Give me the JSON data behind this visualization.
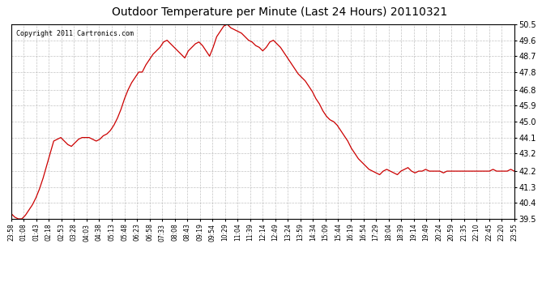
{
  "title": "Outdoor Temperature per Minute (Last 24 Hours) 20110321",
  "copyright": "Copyright 2011 Cartronics.com",
  "line_color": "#cc0000",
  "bg_color": "#ffffff",
  "plot_bg_color": "#ffffff",
  "grid_color": "#aaaaaa",
  "grid_style": "--",
  "ylim": [
    39.5,
    50.5
  ],
  "yticks": [
    39.5,
    40.4,
    41.3,
    42.2,
    43.2,
    44.1,
    45.0,
    45.9,
    46.8,
    47.8,
    48.7,
    49.6,
    50.5
  ],
  "x_labels": [
    "23:58",
    "01:08",
    "01:43",
    "02:18",
    "02:53",
    "03:28",
    "04:03",
    "04:38",
    "05:13",
    "05:48",
    "06:23",
    "06:58",
    "07:33",
    "08:08",
    "08:43",
    "09:19",
    "09:54",
    "10:29",
    "11:04",
    "11:39",
    "12:14",
    "12:49",
    "13:24",
    "13:59",
    "14:34",
    "15:09",
    "15:44",
    "16:19",
    "16:54",
    "17:29",
    "18:04",
    "18:39",
    "19:14",
    "19:49",
    "20:24",
    "20:59",
    "21:35",
    "22:10",
    "22:45",
    "23:20",
    "23:55"
  ],
  "temperature_profile": [
    39.8,
    39.6,
    39.5,
    39.5,
    39.7,
    40.0,
    40.3,
    40.7,
    41.2,
    41.8,
    42.5,
    43.2,
    43.9,
    44.0,
    44.1,
    43.9,
    43.7,
    43.6,
    43.8,
    44.0,
    44.1,
    44.1,
    44.1,
    44.0,
    43.9,
    44.0,
    44.2,
    44.3,
    44.5,
    44.8,
    45.2,
    45.7,
    46.3,
    46.8,
    47.2,
    47.5,
    47.8,
    47.8,
    48.2,
    48.5,
    48.8,
    49.0,
    49.2,
    49.5,
    49.6,
    49.4,
    49.2,
    49.0,
    48.8,
    48.6,
    49.0,
    49.2,
    49.4,
    49.5,
    49.3,
    49.0,
    48.7,
    49.2,
    49.8,
    50.1,
    50.4,
    50.5,
    50.3,
    50.2,
    50.1,
    50.0,
    49.8,
    49.6,
    49.5,
    49.3,
    49.2,
    49.0,
    49.2,
    49.5,
    49.6,
    49.4,
    49.2,
    48.9,
    48.6,
    48.3,
    48.0,
    47.7,
    47.5,
    47.3,
    47.0,
    46.7,
    46.3,
    46.0,
    45.6,
    45.3,
    45.1,
    45.0,
    44.8,
    44.5,
    44.2,
    43.9,
    43.5,
    43.2,
    42.9,
    42.7,
    42.5,
    42.3,
    42.2,
    42.1,
    42.0,
    42.2,
    42.3,
    42.2,
    42.1,
    42.0,
    42.2,
    42.3,
    42.4,
    42.2,
    42.1,
    42.2,
    42.2,
    42.3,
    42.2,
    42.2,
    42.2,
    42.2,
    42.1,
    42.2,
    42.2,
    42.2,
    42.2,
    42.2,
    42.2,
    42.2,
    42.2,
    42.2,
    42.2,
    42.2,
    42.2,
    42.2,
    42.3,
    42.2,
    42.2,
    42.2,
    42.2,
    42.3,
    42.2
  ]
}
